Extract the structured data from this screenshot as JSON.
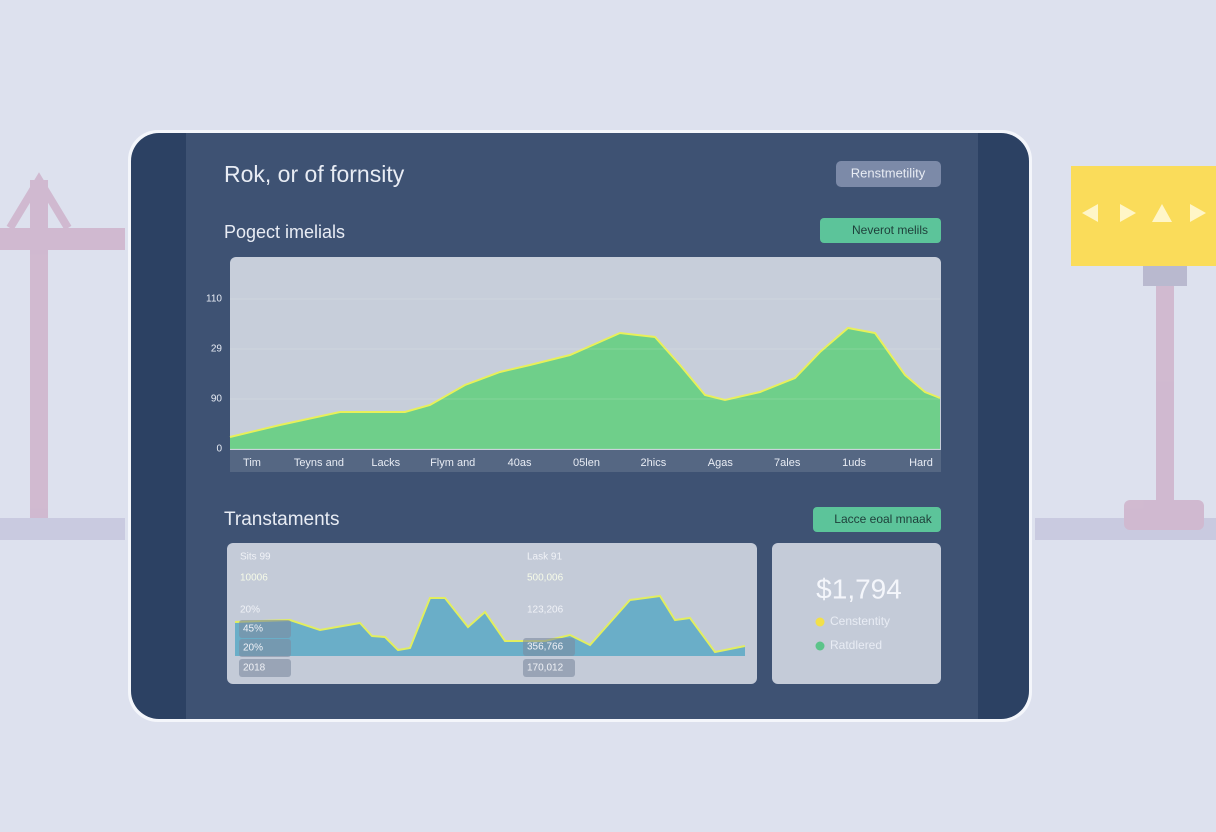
{
  "header": {
    "title": "Rok, or of fornsity",
    "button": "Renstmetility"
  },
  "overview": {
    "title": "Pogect imelials",
    "badge": "Neverot melils",
    "chart": {
      "type": "area",
      "categories": [
        "Tim",
        "Teyns and",
        "Lacks",
        "Flym and",
        "40as",
        "05len",
        "2hics",
        "Agas",
        "7ales",
        "1uds",
        "Hard"
      ],
      "x": [
        0,
        50,
        110,
        175,
        200,
        235,
        270,
        300,
        340,
        390,
        425,
        450,
        475,
        495,
        530,
        565,
        590,
        618,
        645,
        675,
        695,
        710
      ],
      "values": [
        12,
        24,
        37,
        37,
        44,
        64,
        77,
        84,
        94,
        116,
        112,
        84,
        54,
        49,
        57,
        71,
        97,
        121,
        116,
        74,
        57,
        51
      ],
      "xlim": [
        0,
        710
      ],
      "ylim": [
        0,
        150
      ],
      "yticks": [
        0,
        {
          "value": 50,
          "label": "90"
        },
        {
          "value": 100,
          "label": "29"
        },
        {
          "value": 150,
          "label": "110"
        }
      ],
      "color": "#6fcf8a",
      "line_color": "#e8f05a"
    }
  },
  "transactions": {
    "title": "Transtaments",
    "badge": "Lacce eoal mnaak",
    "chart": {
      "type": "area",
      "x": [
        0,
        55,
        85,
        125,
        137,
        150,
        163,
        175,
        195,
        210,
        233,
        250,
        270,
        310,
        335,
        355,
        395,
        425,
        440,
        455,
        480,
        510
      ],
      "values": [
        34,
        36,
        26,
        33,
        20,
        19,
        6,
        8,
        58,
        58,
        29,
        44,
        15,
        15,
        21,
        11,
        56,
        60,
        36,
        38,
        4,
        10
      ],
      "xlim": [
        0,
        510
      ],
      "ylim": [
        0,
        110
      ],
      "color": "#6aaec8",
      "line_color": "#e2ee60",
      "labels": [
        "Sits 99",
        "10006",
        "20%",
        "45%",
        "20%",
        "2018",
        "Lask 91",
        "500,006",
        "123,206",
        "356,766",
        "170,012"
      ]
    },
    "summary": {
      "amount": "$1,794",
      "legend": [
        {
          "name": "Censtentity",
          "color": "#f2e04a"
        },
        {
          "name": "Ratdlered",
          "color": "#5cc48a"
        }
      ]
    }
  }
}
